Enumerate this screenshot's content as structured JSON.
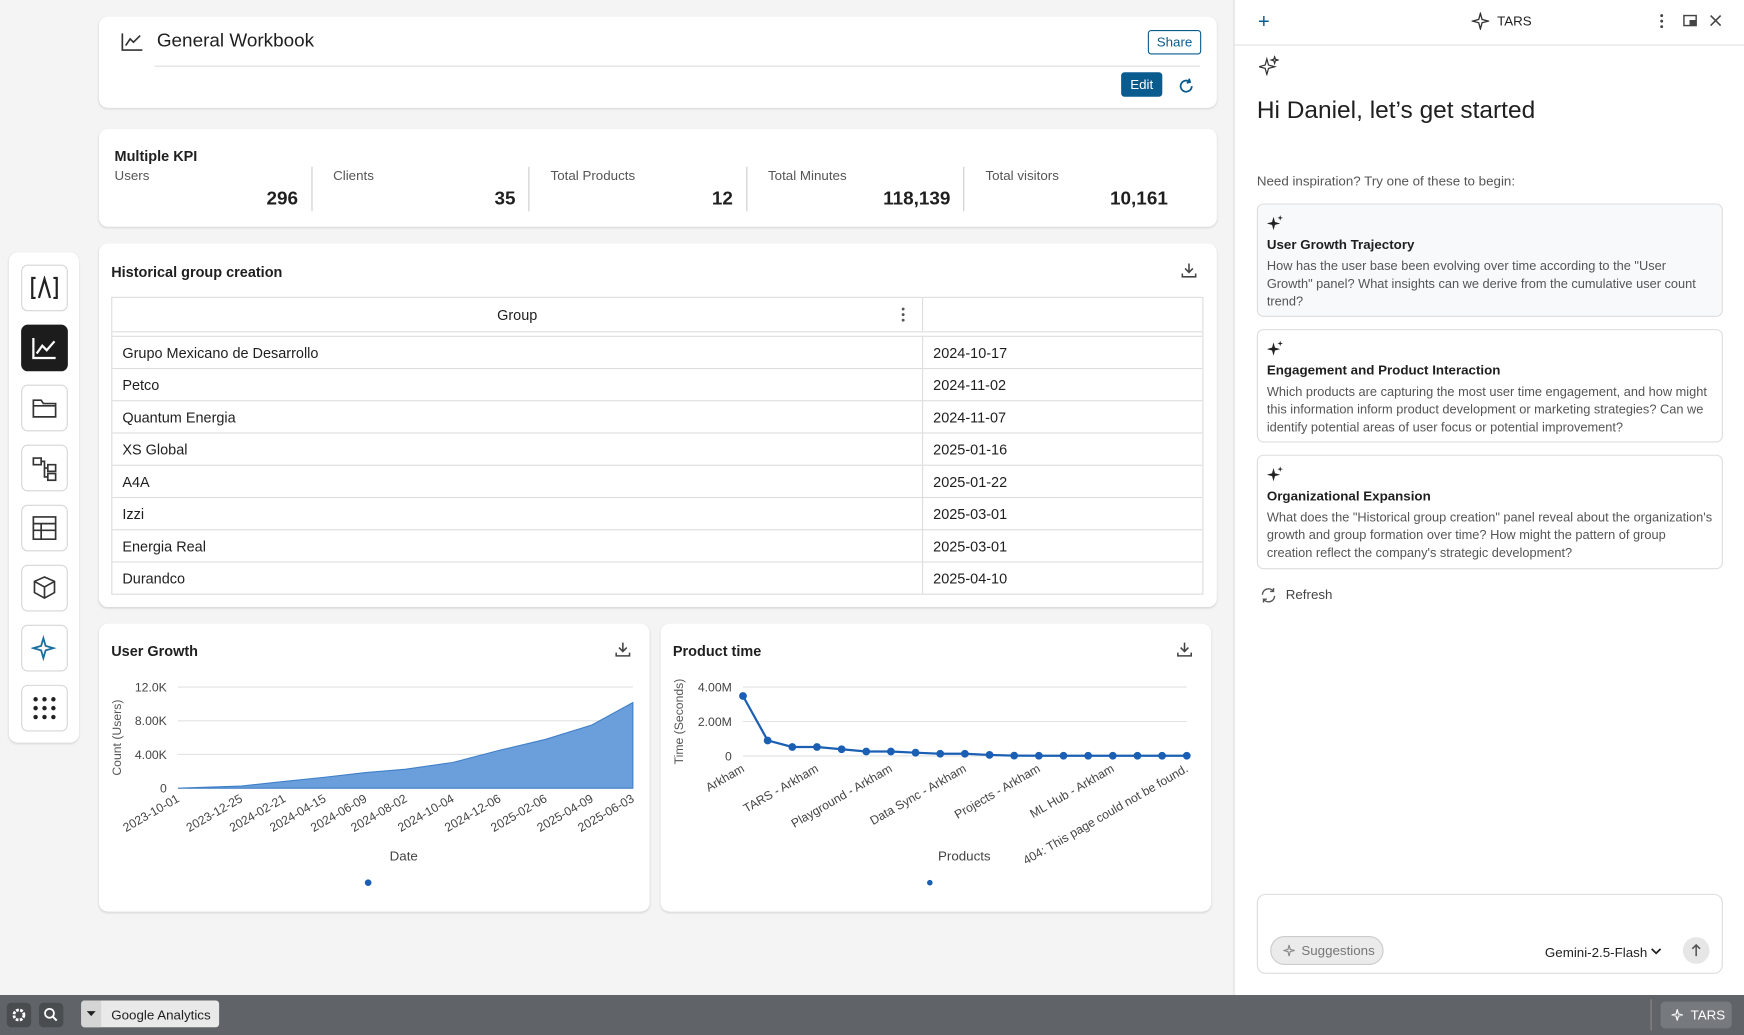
{
  "header": {
    "title": "General Workbook",
    "share": "Share",
    "edit": "Edit"
  },
  "kpi": {
    "title": "Multiple KPI",
    "items": [
      {
        "label": "Users",
        "value": "296"
      },
      {
        "label": "Clients",
        "value": "35"
      },
      {
        "label": "Total Products",
        "value": "12"
      },
      {
        "label": "Total Minutes",
        "value": "118,139"
      },
      {
        "label": "Total visitors",
        "value": "10,161"
      }
    ]
  },
  "table": {
    "title": "Historical group creation",
    "columns": [
      "Group"
    ],
    "rows": [
      [
        "Grupo Mexicano de Desarrollo",
        "2024-10-17"
      ],
      [
        "Petco",
        "2024-11-02"
      ],
      [
        "Quantum Energia",
        "2024-11-07"
      ],
      [
        "XS Global",
        "2025-01-16"
      ],
      [
        "A4A",
        "2025-01-22"
      ],
      [
        "Izzi",
        "2025-03-01"
      ],
      [
        "Energia Real",
        "2025-03-01"
      ],
      [
        "Durandco",
        "2025-04-10"
      ]
    ]
  },
  "chart_data": [
    {
      "type": "area",
      "title": "User Growth",
      "x_label": "Date",
      "y_label": "Count (Users)",
      "x": [
        "2023-10-01",
        "2023-12-25",
        "2024-02-21",
        "2024-04-15",
        "2024-06-09",
        "2024-08-02",
        "2024-10-04",
        "2024-12-06",
        "2025-02-06",
        "2025-04-09",
        "2025-06-03"
      ],
      "values": [
        0,
        250,
        800,
        1300,
        1850,
        2250,
        3050,
        4500,
        5800,
        7500,
        10161
      ],
      "color": "#6a9fdc",
      "ylim": [
        0,
        12000
      ],
      "yticks": [
        0,
        {
          "value": 4000,
          "label": "4.00K"
        },
        {
          "value": 8000,
          "label": "8.00K"
        },
        {
          "value": 12000,
          "label": "12.0K"
        }
      ],
      "grid": true
    },
    {
      "type": "line",
      "title": "Product time",
      "x_label": "Products",
      "y_label": "Time (Seconds)",
      "categories": [
        "Arkham",
        null,
        null,
        "TARS - Arkham",
        null,
        null,
        "Playground - Arkham",
        null,
        null,
        "Data Sync - Arkham",
        null,
        null,
        "Projects - Arkham",
        null,
        null,
        "ML Hub - Arkham",
        null,
        null,
        "404: This page could not be found."
      ],
      "values": [
        3480000,
        900000,
        520000,
        520000,
        390000,
        260000,
        260000,
        190000,
        130000,
        130000,
        60000,
        20000,
        10000,
        10000,
        10000,
        10000,
        10000,
        10000,
        10000
      ],
      "color": "#1a5fb4",
      "ylim": [
        0,
        4000000
      ],
      "yticks": [
        0,
        {
          "value": 2000000,
          "label": "2.00M"
        },
        {
          "value": 4000000,
          "label": "4.00M"
        }
      ],
      "grid": true
    }
  ],
  "assistant": {
    "name": "TARS",
    "greeting": "Hi Daniel, let’s get started",
    "prompt": "Need inspiration? Try one of these to begin:",
    "suggestions": [
      {
        "title": "User Growth Trajectory",
        "text": "How has the user base been evolving over time according to the \"User Growth\" panel? What insights can we derive from the cumulative user count trend?"
      },
      {
        "title": "Engagement and Product Interaction",
        "text": "Which products are capturing the most user time engagement, and how might this information inform product development or marketing strategies? Can we identify potential areas of user focus or potential improvement?"
      },
      {
        "title": "Organizational Expansion",
        "text": "What does the \"Historical group creation\" panel reveal about the organization's growth and group formation over time? How might the pattern of group creation reflect the company's strategic development?"
      }
    ],
    "refresh": "Refresh",
    "suggestions_button": "Suggestions",
    "model": "Gemini-2.5-Flash"
  },
  "taskbar": {
    "tab": "Google Analytics",
    "assistant": "TARS"
  }
}
